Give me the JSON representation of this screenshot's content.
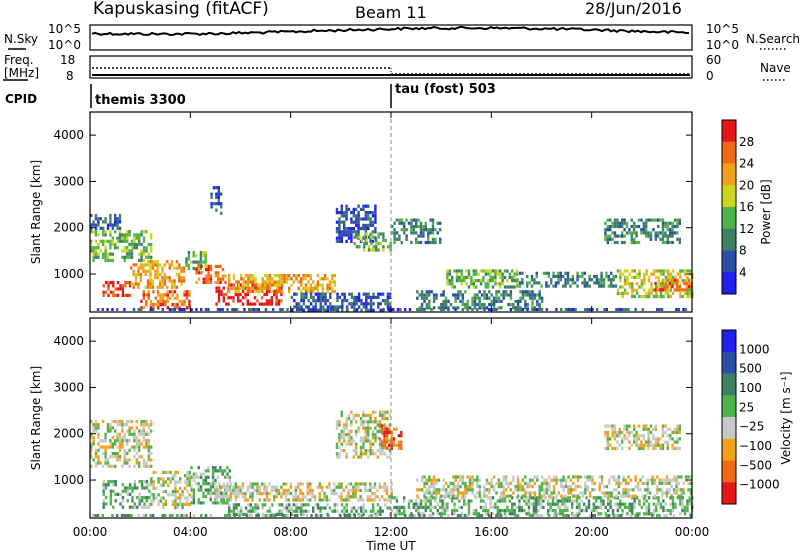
{
  "header": {
    "station": "Kapuskasing (fitACF)",
    "beam": "Beam 11",
    "date": "28/Jun/2016"
  },
  "top_panels": {
    "nsky": {
      "label": "N.Sky",
      "tick_top": "10^5",
      "tick_bottom": "10^0"
    },
    "nsearch": {
      "label": "N.Search",
      "tick_top": "10^5",
      "tick_bottom": "10^0"
    },
    "freq": {
      "label": "Freq.",
      "unit": "[MHz]",
      "tick_top": "18",
      "tick_bottom": "8"
    },
    "nave": {
      "label": "Nave",
      "tick_top": "60",
      "tick_bottom": "0"
    },
    "cpid": {
      "label": "CPID",
      "modes": [
        {
          "name": "themis 3300",
          "start_hour": 0
        },
        {
          "name": "tau (fost) 503",
          "start_hour": 12
        }
      ]
    }
  },
  "axes": {
    "x_ticks": [
      "00:00",
      "04:00",
      "08:00",
      "12:00",
      "16:00",
      "20:00",
      "00:00"
    ],
    "x_label": "Time UT",
    "y_ticks": [
      "1000",
      "2000",
      "3000",
      "4000"
    ],
    "y_label": "Slant Range [km]"
  },
  "colorbars": {
    "power": {
      "label": "Power [dB]",
      "ticks": [
        "4",
        "8",
        "12",
        "16",
        "20",
        "24",
        "28"
      ]
    },
    "velocity": {
      "label": "Velocity [m s⁻¹]",
      "ticks": [
        "1000",
        "500",
        "100",
        "25",
        "−25",
        "−100",
        "−500",
        "−1000"
      ]
    }
  },
  "chart_data": [
    {
      "type": "heatmap",
      "name": "power",
      "x_range_hours": [
        0,
        24
      ],
      "ylim": [
        180,
        4500
      ],
      "colorscale": [
        "#1f1fef",
        "#2b4fa6",
        "#3d7f62",
        "#4fb24a",
        "#ccd61c",
        "#f0a11a",
        "#ee6a19",
        "#e51616"
      ],
      "scale_values": [
        4,
        8,
        12,
        16,
        20,
        24,
        28
      ],
      "regions": [
        {
          "t0": 0.0,
          "t1": 2.4,
          "r0": 1300,
          "r1": 1950,
          "level": 3
        },
        {
          "t0": 0.0,
          "t1": 1.2,
          "r0": 2000,
          "r1": 2300,
          "level": 1
        },
        {
          "t0": 0.5,
          "t1": 1.6,
          "r0": 550,
          "r1": 850,
          "level": 7
        },
        {
          "t0": 1.6,
          "t1": 3.8,
          "r0": 700,
          "r1": 1300,
          "level": 5
        },
        {
          "t0": 2.0,
          "t1": 4.0,
          "r0": 300,
          "r1": 650,
          "level": 6
        },
        {
          "t0": 3.8,
          "t1": 4.6,
          "r0": 1100,
          "r1": 1500,
          "level": 3
        },
        {
          "t0": 4.2,
          "t1": 5.4,
          "r0": 800,
          "r1": 1200,
          "level": 6
        },
        {
          "t0": 4.8,
          "t1": 5.2,
          "r0": 2300,
          "r1": 2900,
          "level": 1
        },
        {
          "t0": 5.0,
          "t1": 7.6,
          "r0": 350,
          "r1": 800,
          "level": 7
        },
        {
          "t0": 5.5,
          "t1": 9.8,
          "r0": 650,
          "r1": 1000,
          "level": 5
        },
        {
          "t0": 8.0,
          "t1": 12.0,
          "r0": 250,
          "r1": 600,
          "level": 1
        },
        {
          "t0": 9.8,
          "t1": 11.4,
          "r0": 1700,
          "r1": 2500,
          "level": 1
        },
        {
          "t0": 10.5,
          "t1": 12.0,
          "r0": 1500,
          "r1": 1900,
          "level": 3
        },
        {
          "t0": 12.0,
          "t1": 14.0,
          "r0": 1700,
          "r1": 2200,
          "level": 2
        },
        {
          "t0": 14.2,
          "t1": 17.0,
          "r0": 700,
          "r1": 1100,
          "level": 3
        },
        {
          "t0": 13.0,
          "t1": 18.0,
          "r0": 300,
          "r1": 650,
          "level": 2
        },
        {
          "t0": 17.0,
          "t1": 21.0,
          "r0": 750,
          "r1": 1050,
          "level": 2
        },
        {
          "t0": 20.5,
          "t1": 23.5,
          "r0": 1700,
          "r1": 2200,
          "level": 2
        },
        {
          "t0": 21.0,
          "t1": 24.0,
          "r0": 500,
          "r1": 1100,
          "level": 4
        },
        {
          "t0": 22.5,
          "t1": 24.0,
          "r0": 650,
          "r1": 900,
          "level": 6
        }
      ]
    },
    {
      "type": "heatmap",
      "name": "velocity",
      "x_range_hours": [
        0,
        24
      ],
      "ylim": [
        180,
        4500
      ],
      "colorscale": [
        "#1f1fef",
        "#2b4fa6",
        "#3d7f62",
        "#4fb24a",
        "#c8c8c8",
        "#f0a11a",
        "#ee6a19",
        "#e51616"
      ],
      "scale_values": [
        1000,
        500,
        100,
        25,
        -25,
        -100,
        -500,
        -1000
      ],
      "regions": [
        {
          "t0": 0.0,
          "t1": 2.4,
          "r0": 1300,
          "r1": 2300,
          "level": 4
        },
        {
          "t0": 0.5,
          "t1": 2.5,
          "r0": 400,
          "r1": 1000,
          "level": 3
        },
        {
          "t0": 2.4,
          "t1": 4.0,
          "r0": 400,
          "r1": 1200,
          "level": 4
        },
        {
          "t0": 4.0,
          "t1": 5.6,
          "r0": 500,
          "r1": 1300,
          "level": 3
        },
        {
          "t0": 5.0,
          "t1": 12.0,
          "r0": 550,
          "r1": 950,
          "level": 4
        },
        {
          "t0": 5.5,
          "t1": 12.0,
          "r0": 250,
          "r1": 500,
          "level": 3
        },
        {
          "t0": 9.8,
          "t1": 12.0,
          "r0": 1500,
          "r1": 2500,
          "level": 4
        },
        {
          "t0": 11.5,
          "t1": 12.4,
          "r0": 1700,
          "r1": 2200,
          "level": 6
        },
        {
          "t0": 12.0,
          "t1": 24.0,
          "r0": 250,
          "r1": 650,
          "level": 3
        },
        {
          "t0": 13.0,
          "t1": 24.0,
          "r0": 650,
          "r1": 1100,
          "level": 4
        },
        {
          "t0": 20.5,
          "t1": 23.5,
          "r0": 1700,
          "r1": 2200,
          "level": 4
        }
      ]
    }
  ]
}
